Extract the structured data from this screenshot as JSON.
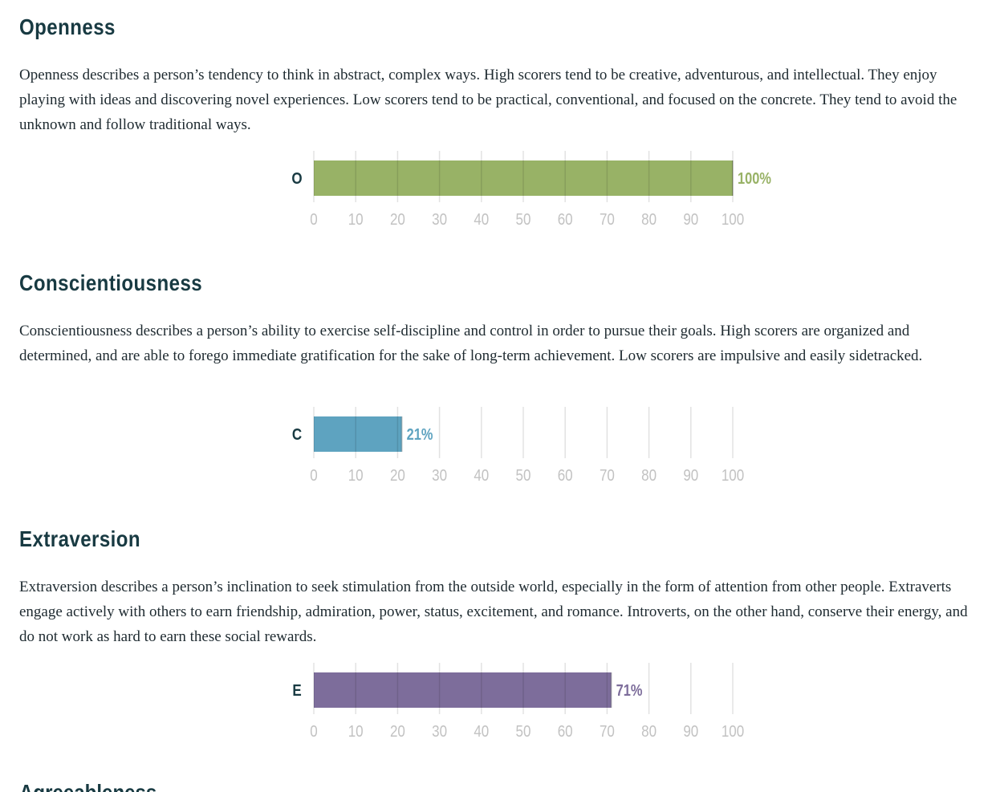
{
  "sections": [
    {
      "title": "Openness",
      "description": "Openness describes a person’s tendency to think in abstract, complex ways. High scorers tend to be creative, adventurous, and intellectual. They enjoy playing with ideas and discovering novel experiences. Low scorers tend to be practical, conventional, and focused on the concrete. They tend to avoid the unknown and follow traditional ways."
    },
    {
      "title": "Conscientiousness",
      "description": "Conscientiousness describes a person’s ability to exercise self-discipline and control in order to pursue their goals. High scorers are organized and determined, and are able to forego immediate gratification for the sake of long-term achievement. Low scorers are impulsive and easily sidetracked."
    },
    {
      "title": "Extraversion",
      "description": "Extraversion describes a person’s inclination to seek stimulation from the outside world, especially in the form of attention from other people. Extraverts engage actively with others to earn friendship, admiration, power, status, excitement, and romance. Introverts, on the other hand, conserve their energy, and do not work as hard to earn these social rewards."
    }
  ],
  "next_section_title": "Agreeableness",
  "chart_data": [
    {
      "type": "bar",
      "categories": [
        "O"
      ],
      "values": [
        100
      ],
      "value_label": "100%",
      "color": "#98b266",
      "label_color": "#98b266",
      "xlim": [
        0,
        100
      ],
      "ticks": [
        0,
        10,
        20,
        30,
        40,
        50,
        60,
        70,
        80,
        90,
        100
      ],
      "grid": true
    },
    {
      "type": "bar",
      "categories": [
        "C"
      ],
      "values": [
        21
      ],
      "value_label": "21%",
      "color": "#5ea3c0",
      "label_color": "#5ea3c0",
      "xlim": [
        0,
        100
      ],
      "ticks": [
        0,
        10,
        20,
        30,
        40,
        50,
        60,
        70,
        80,
        90,
        100
      ],
      "grid": true
    },
    {
      "type": "bar",
      "categories": [
        "E"
      ],
      "values": [
        71
      ],
      "value_label": "71%",
      "color": "#7d6d9b",
      "label_color": "#7d6d9b",
      "xlim": [
        0,
        100
      ],
      "ticks": [
        0,
        10,
        20,
        30,
        40,
        50,
        60,
        70,
        80,
        90,
        100
      ],
      "grid": true
    }
  ],
  "colors": {
    "heading": "#183a42",
    "body_text": "#1e2a30",
    "tick_text": "#c2c2c2",
    "grid_line": "#e2e2e2",
    "category_label": "#183a42"
  }
}
